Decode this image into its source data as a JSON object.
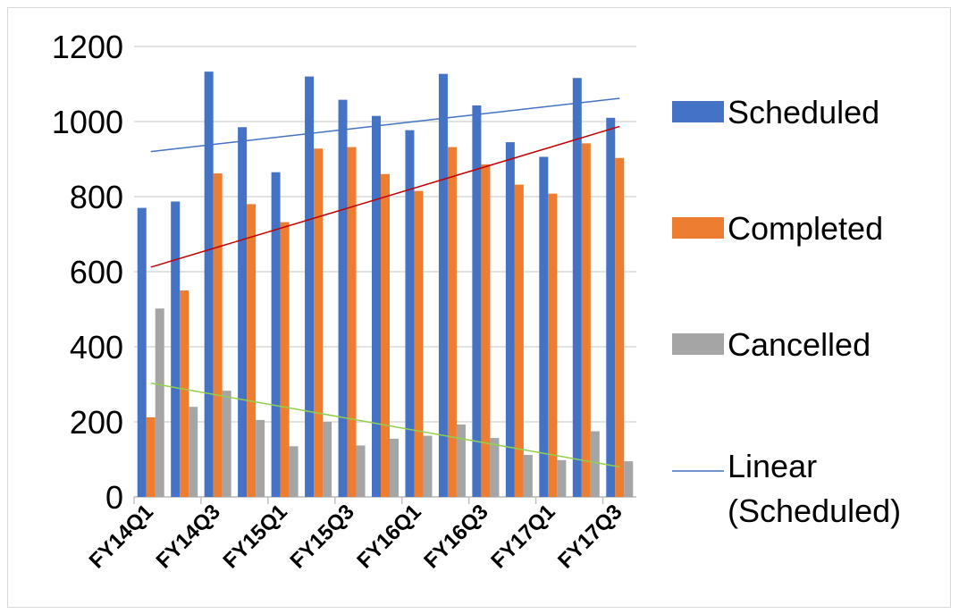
{
  "chart_data": {
    "type": "bar",
    "categories": [
      "FY14Q1",
      "FY14Q2",
      "FY14Q3",
      "FY14Q4",
      "FY15Q1",
      "FY15Q2",
      "FY15Q3",
      "FY15Q4",
      "FY16Q1",
      "FY16Q2",
      "FY16Q3",
      "FY16Q4",
      "FY17Q1",
      "FY17Q2",
      "FY17Q3"
    ],
    "visible_tick_labels": [
      "FY14Q1",
      "FY14Q3",
      "FY15Q1",
      "FY15Q3",
      "FY16Q1",
      "FY16Q3",
      "FY17Q1",
      "FY17Q3"
    ],
    "series": [
      {
        "name": "Scheduled",
        "color": "#4472c4",
        "values": [
          770,
          787,
          1133,
          985,
          865,
          1120,
          1058,
          1015,
          977,
          1127,
          1043,
          945,
          906,
          1116,
          1010
        ]
      },
      {
        "name": "Completed",
        "color": "#ed7d31",
        "values": [
          212,
          550,
          862,
          780,
          732,
          928,
          932,
          860,
          815,
          932,
          886,
          832,
          808,
          942,
          903
        ]
      },
      {
        "name": "Cancelled",
        "color": "#a5a5a5",
        "values": [
          502,
          240,
          283,
          205,
          135,
          200,
          137,
          155,
          163,
          193,
          157,
          112,
          98,
          175,
          95
        ]
      }
    ],
    "trendlines": [
      {
        "series": "Scheduled",
        "type": "linear",
        "color": "#4472c4",
        "start": 920,
        "end": 1062
      },
      {
        "series": "Completed",
        "type": "linear",
        "color": "#c00000",
        "start": 612,
        "end": 987
      },
      {
        "series": "Cancelled",
        "type": "linear",
        "color": "#92d050",
        "start": 303,
        "end": 80
      }
    ],
    "legend": [
      {
        "label": "Scheduled",
        "kind": "box",
        "color": "#4472c4"
      },
      {
        "label": "Completed",
        "kind": "box",
        "color": "#ed7d31"
      },
      {
        "label": "Cancelled",
        "kind": "box",
        "color": "#a5a5a5"
      },
      {
        "label_lines": [
          "Linear",
          "(Scheduled)"
        ],
        "kind": "line",
        "color": "#4472c4"
      }
    ],
    "legend_position": "right",
    "ylim": [
      0,
      1200
    ],
    "yticks": [
      0,
      200,
      400,
      600,
      800,
      1000,
      1200
    ],
    "grid": true,
    "title": "",
    "xlabel": "",
    "ylabel": ""
  }
}
